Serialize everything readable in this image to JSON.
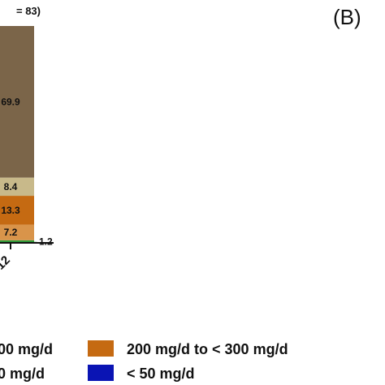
{
  "panel_label": "(B)",
  "title_fragment": "= 83)",
  "chart_data": {
    "type": "bar",
    "stacked": true,
    "categories": [
      "12"
    ],
    "series": [
      {
        "name": "< 50 mg/d",
        "values": [
          0
        ],
        "color": "#0a14b4"
      },
      {
        "name": "",
        "values": [
          1.2
        ],
        "color": "#2e9a3a",
        "label": "1.2"
      },
      {
        "name": "",
        "values": [
          7.2
        ],
        "color": "#d9944a",
        "label": "7.2"
      },
      {
        "name": "200 mg/d to < 300 mg/d",
        "values": [
          13.3
        ],
        "color": "#c56a12",
        "label": "13.3"
      },
      {
        "name": "",
        "values": [
          8.4
        ],
        "color": "#c8b98a",
        "label": "8.4"
      },
      {
        "name": "",
        "values": [
          69.9
        ],
        "color": "#7b6549",
        "label": "69.9"
      }
    ],
    "ylim": [
      0,
      100
    ]
  },
  "legend": [
    {
      "label": "00 mg/d",
      "color": ""
    },
    {
      "label": "200 mg/d to < 300 mg/d",
      "color": "#c56a12"
    },
    {
      "label": "0 mg/d",
      "color": ""
    },
    {
      "label": "< 50 mg/d",
      "color": "#0a14b4"
    }
  ]
}
